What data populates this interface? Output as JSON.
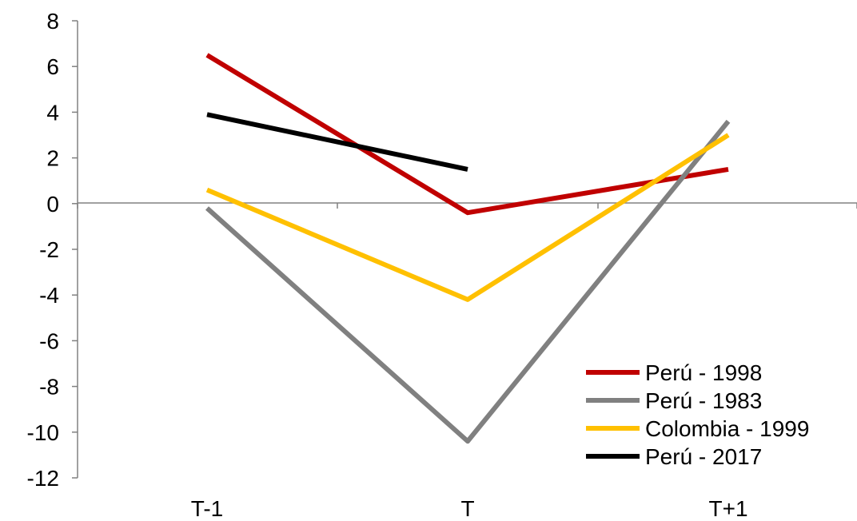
{
  "chart_data": {
    "type": "line",
    "categories": [
      "T-1",
      "T",
      "T+1"
    ],
    "ylim": [
      -12,
      8
    ],
    "yticks": [
      "8",
      "6",
      "4",
      "2",
      "0",
      "-2",
      "-4",
      "-6",
      "-8",
      "-10",
      "-12"
    ],
    "grid": false,
    "legend_position": "bottom-right",
    "series": [
      {
        "name": "Perú - 1998",
        "color": "#c00000",
        "values": [
          6.5,
          -0.4,
          1.5
        ]
      },
      {
        "name": "Perú - 1983",
        "color": "#808080",
        "values": [
          -0.2,
          -10.4,
          3.6
        ]
      },
      {
        "name": "Colombia - 1999",
        "color": "#ffc000",
        "values": [
          0.6,
          -4.2,
          3.0
        ]
      },
      {
        "name": "Perú - 2017",
        "color": "#000000",
        "values": [
          3.9,
          1.5,
          null
        ]
      }
    ]
  }
}
